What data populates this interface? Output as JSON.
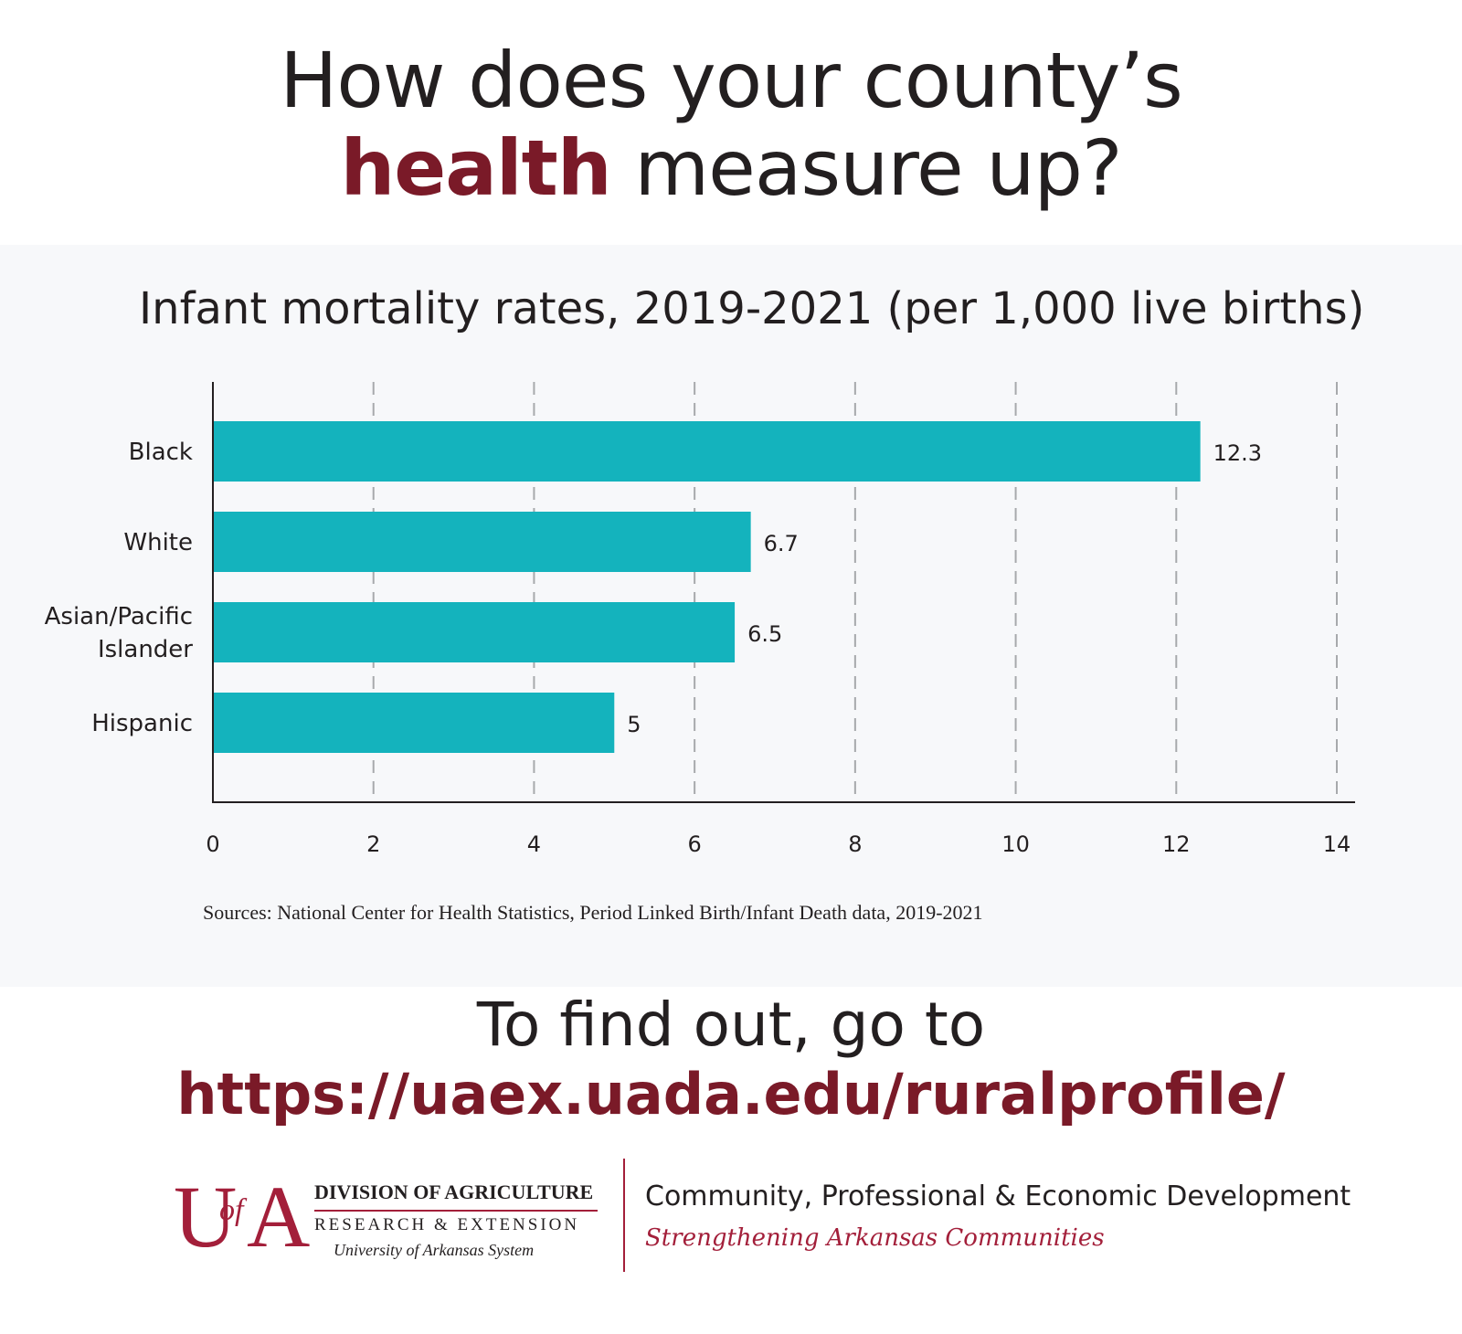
{
  "header": {
    "line1": "How does your county’s",
    "accent_word": "health",
    "line2_rest": " measure up?"
  },
  "chart_data": {
    "type": "bar",
    "orientation": "horizontal",
    "title": "Infant mortality rates, 2019-2021 (per 1,000 live births)",
    "categories": [
      "Black",
      "White",
      "Asian/Pacific Islander",
      "Hispanic"
    ],
    "category_label_lines": [
      [
        "Black"
      ],
      [
        "White"
      ],
      [
        "Asian/Pacific",
        "Islander"
      ],
      [
        "Hispanic"
      ]
    ],
    "values": [
      12.3,
      6.7,
      6.5,
      5
    ],
    "value_labels": [
      "12.3",
      "6.7",
      "6.5",
      "5"
    ],
    "xlabel": "",
    "ylabel": "",
    "xlim": [
      0,
      14
    ],
    "xticks": [
      0,
      2,
      4,
      6,
      8,
      10,
      12,
      14
    ],
    "grid": "vertical dashed",
    "bar_color": "#14b3bd"
  },
  "sources": "Sources: National Center for Health Statistics, Period Linked Birth/Infant Death data, 2019-2021",
  "cta": {
    "line": "To find out, go to",
    "url": "https://uaex.uada.edu/ruralprofile/"
  },
  "footer": {
    "logo_letters": {
      "u": "U",
      "of": "of",
      "a": "A"
    },
    "division": "DIVISION OF AGRICULTURE",
    "research": "RESEARCH & EXTENSION",
    "system": "University of Arkansas System",
    "dept": "Community, Professional & Economic Development",
    "tagline": "Strengthening Arkansas Communities"
  },
  "colors": {
    "accent": "#7a1a28",
    "logo_red": "#a31f3a",
    "panel_bg": "#f7f8fa",
    "text": "#231f20"
  }
}
